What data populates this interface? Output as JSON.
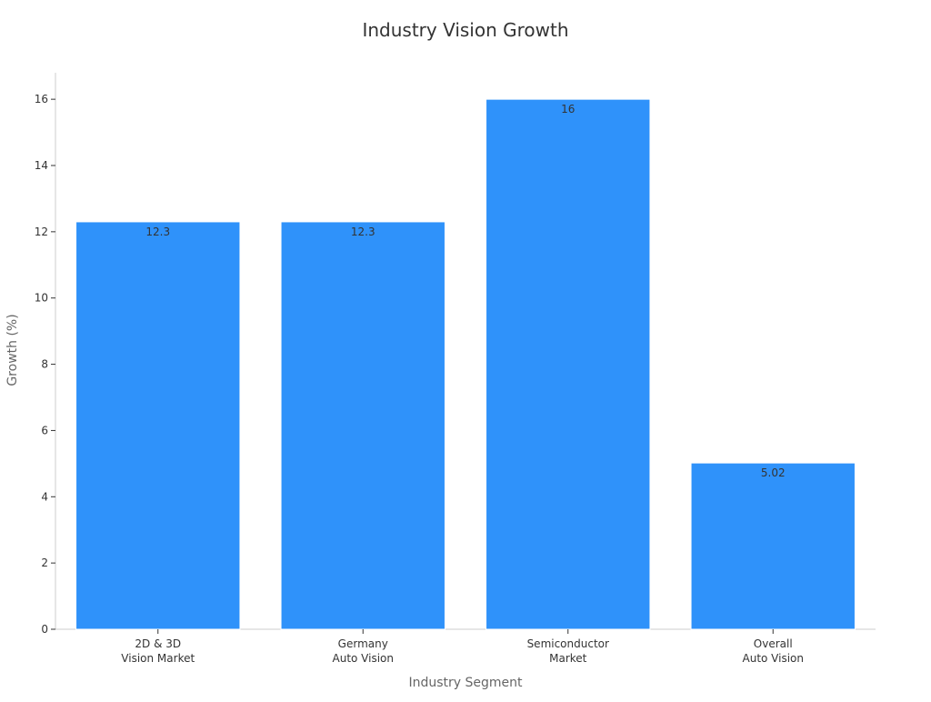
{
  "chart_data": {
    "type": "bar",
    "title": "Industry Vision Growth",
    "xlabel": "Industry Segment",
    "ylabel": "Growth (%)",
    "ylim": [
      0,
      16.8
    ],
    "yticks": [
      0,
      2,
      4,
      6,
      8,
      10,
      12,
      14,
      16
    ],
    "categories": [
      [
        "2D & 3D",
        "Vision Market"
      ],
      [
        "Germany",
        "Auto Vision"
      ],
      [
        "Semiconductor",
        "Market"
      ],
      [
        "Overall",
        "Auto Vision"
      ]
    ],
    "values": [
      12.3,
      12.3,
      16,
      5.02
    ],
    "data_labels": [
      "12.3",
      "12.3",
      "16",
      "5.02"
    ],
    "grid": false,
    "legend": "none",
    "colors": {
      "bar": "#2f92fa",
      "bar_edge": "#ffffff",
      "axis": "#cccccc",
      "tick_text": "#333333",
      "axis_title": "#666666",
      "title": "#333333"
    }
  }
}
